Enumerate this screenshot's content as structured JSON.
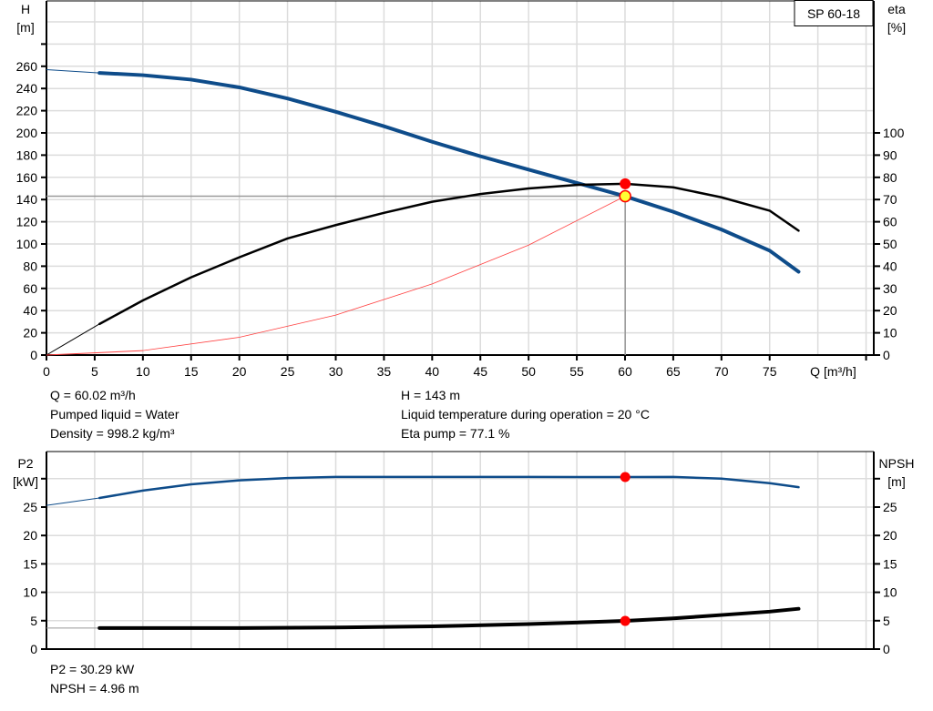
{
  "chart_data": [
    {
      "type": "line",
      "title": "SP 60-18",
      "xlabel": "Q [m³/h]",
      "ylabel_left": [
        "H",
        "[m]"
      ],
      "ylabel_right": [
        "eta",
        "[%]"
      ],
      "xlim": [
        0,
        85
      ],
      "ylim_left": [
        0,
        320
      ],
      "ylim_right": [
        0,
        130
      ],
      "x_ticks": [
        0,
        5,
        10,
        15,
        20,
        25,
        30,
        35,
        40,
        45,
        50,
        55,
        60,
        65,
        70,
        75
      ],
      "y_ticks_left": [
        0,
        20,
        40,
        60,
        80,
        100,
        120,
        140,
        160,
        180,
        200,
        220,
        240,
        260
      ],
      "y_ticks_right": [
        0,
        10,
        20,
        30,
        40,
        50,
        60,
        70,
        80,
        90,
        100
      ],
      "grid": true,
      "series": [
        {
          "id": "H",
          "axis": "left",
          "color": "#0e4c8a",
          "x": [
            0,
            5.5,
            10,
            15,
            20,
            25,
            30,
            35,
            40,
            45,
            50,
            55,
            60,
            65,
            70,
            75,
            78
          ],
          "y": [
            257,
            254,
            252,
            248,
            241,
            231,
            219,
            206,
            192,
            179,
            167,
            155,
            143,
            129,
            113,
            94,
            75
          ]
        },
        {
          "id": "eta",
          "axis": "right",
          "color": "#000000",
          "x": [
            0,
            5.5,
            10,
            15,
            20,
            25,
            30,
            35,
            40,
            45,
            50,
            55,
            60,
            65,
            70,
            75,
            78
          ],
          "y": [
            0,
            14,
            24.6,
            35,
            44,
            52.5,
            58.5,
            64,
            69,
            72.5,
            75,
            76.6,
            77.1,
            75.5,
            71,
            65,
            56
          ]
        },
        {
          "id": "system",
          "axis": "left",
          "color": "#ff4040",
          "x": [
            0,
            10,
            20,
            30,
            40,
            50,
            60
          ],
          "y": [
            0,
            4,
            16,
            36,
            64,
            99,
            143
          ]
        }
      ],
      "duty_point": {
        "Q": 60.02,
        "H": 143,
        "eta": 77.1
      }
    },
    {
      "type": "line",
      "ylabel_left": [
        "P2",
        "[kW]"
      ],
      "ylabel_right": [
        "NPSH",
        "[m]"
      ],
      "xlim": [
        0,
        85
      ],
      "ylim_left": [
        0,
        34.5
      ],
      "ylim_right": [
        0,
        34.5
      ],
      "y_ticks_left": [
        0,
        5,
        10,
        15,
        20,
        25
      ],
      "y_ticks_right": [
        0,
        5,
        10,
        15,
        20,
        25
      ],
      "grid": true,
      "series": [
        {
          "id": "P2",
          "axis": "left",
          "color": "#0e4c8a",
          "x": [
            0,
            5.5,
            10,
            15,
            20,
            25,
            30,
            40,
            50,
            60,
            65,
            70,
            75,
            78
          ],
          "y": [
            25.3,
            26.6,
            27.9,
            29,
            29.7,
            30.1,
            30.3,
            30.3,
            30.3,
            30.29,
            30.3,
            30,
            29.2,
            28.5
          ]
        },
        {
          "id": "NPSH",
          "axis": "right",
          "color": "#000000",
          "x": [
            0,
            5.5,
            20,
            30,
            40,
            50,
            60,
            65,
            70,
            75,
            78
          ],
          "y": [
            3.7,
            3.7,
            3.7,
            3.8,
            4,
            4.4,
            4.96,
            5.4,
            6,
            6.6,
            7.1
          ]
        }
      ],
      "duty_point": {
        "Q": 60.02,
        "P2": 30.29,
        "NPSH": 4.96
      }
    }
  ],
  "info_top": {
    "q": "Q = 60.02 m³/h",
    "liquid": "Pumped liquid = Water",
    "density": "Density = 998.2 kg/m³",
    "h": "H = 143 m",
    "temp": "Liquid temperature during operation = 20 °C",
    "eta": "Eta pump = 77.1 %"
  },
  "info_bottom": {
    "p2": "P2 = 30.29 kW",
    "npsh": "NPSH = 4.96 m"
  }
}
